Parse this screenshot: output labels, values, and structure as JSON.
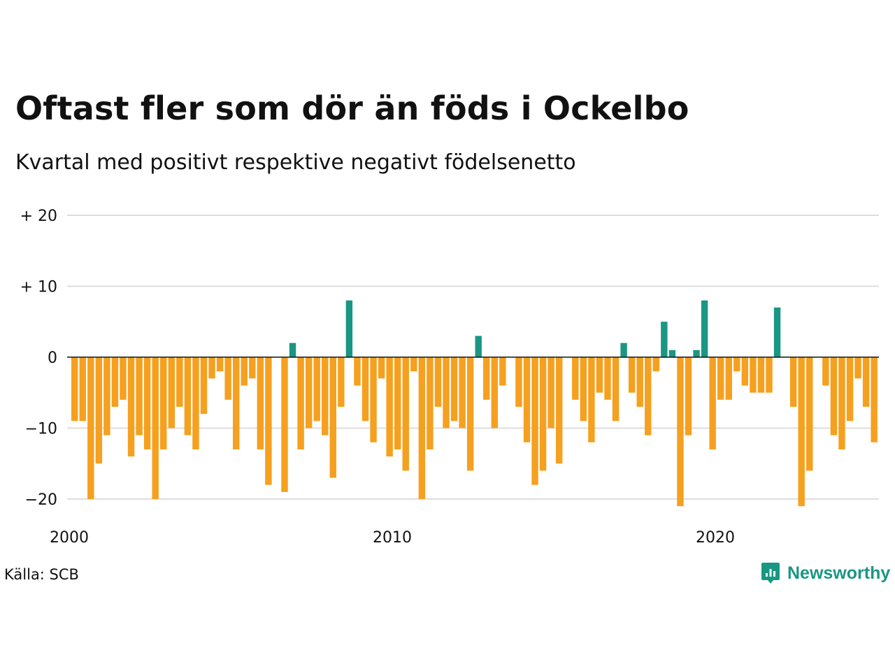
{
  "header": {
    "title": "Oftast fler som dör än föds i Ockelbo",
    "subtitle": "Kvartal med positivt respektive negativt födelsenetto"
  },
  "footer": {
    "source": "Källa: SCB",
    "brand": "Newsworthy",
    "brand_icon": "newsworthy-chart-icon"
  },
  "colors": {
    "positive": "#1a9684",
    "negative": "#f5a01f",
    "grid": "#dddddd",
    "zero_line": "#111111",
    "brand": "#1a9684"
  },
  "chart_data": {
    "type": "bar",
    "title": "Oftast fler som dör än föds i Ockelbo",
    "subtitle": "Kvartal med positivt respektive negativt födelsenetto",
    "xlabel": "",
    "ylabel": "",
    "ylim": [
      -22,
      20
    ],
    "grid": true,
    "y_ticks": [
      {
        "value": 20,
        "label": "+ 20"
      },
      {
        "value": 10,
        "label": "+ 10"
      },
      {
        "value": 0,
        "label": "0"
      },
      {
        "value": -10,
        "label": "−10"
      },
      {
        "value": -20,
        "label": "−20"
      }
    ],
    "x_ticks": [
      {
        "value": 2000,
        "label": "2000"
      },
      {
        "value": 2010,
        "label": "2010"
      },
      {
        "value": 2020,
        "label": "2020"
      }
    ],
    "start_quarter": "2000 K1",
    "values": [
      -9,
      -9,
      -20,
      -15,
      -11,
      -7,
      -6,
      -14,
      -11,
      -13,
      -20,
      -13,
      -10,
      -7,
      -11,
      -13,
      -8,
      -3,
      -2,
      -6,
      -13,
      -4,
      -3,
      -13,
      -18,
      0,
      -19,
      2,
      -13,
      -10,
      -9,
      -11,
      -17,
      -7,
      8,
      -4,
      -9,
      -12,
      -3,
      -14,
      -13,
      -16,
      -2,
      -20,
      -13,
      -7,
      -10,
      -9,
      -10,
      -16,
      3,
      -6,
      -10,
      -4,
      0,
      -7,
      -12,
      -18,
      -16,
      -10,
      -15,
      0,
      -6,
      -9,
      -12,
      -5,
      -6,
      -9,
      2,
      -5,
      -7,
      -11,
      -2,
      5,
      1,
      -21,
      -11,
      1,
      8,
      -13,
      -6,
      -6,
      -2,
      -4,
      -5,
      -5,
      -5,
      7,
      0,
      -7,
      -21,
      -16,
      0,
      -4,
      -11,
      -13,
      -9,
      -3,
      -7,
      -12
    ]
  }
}
